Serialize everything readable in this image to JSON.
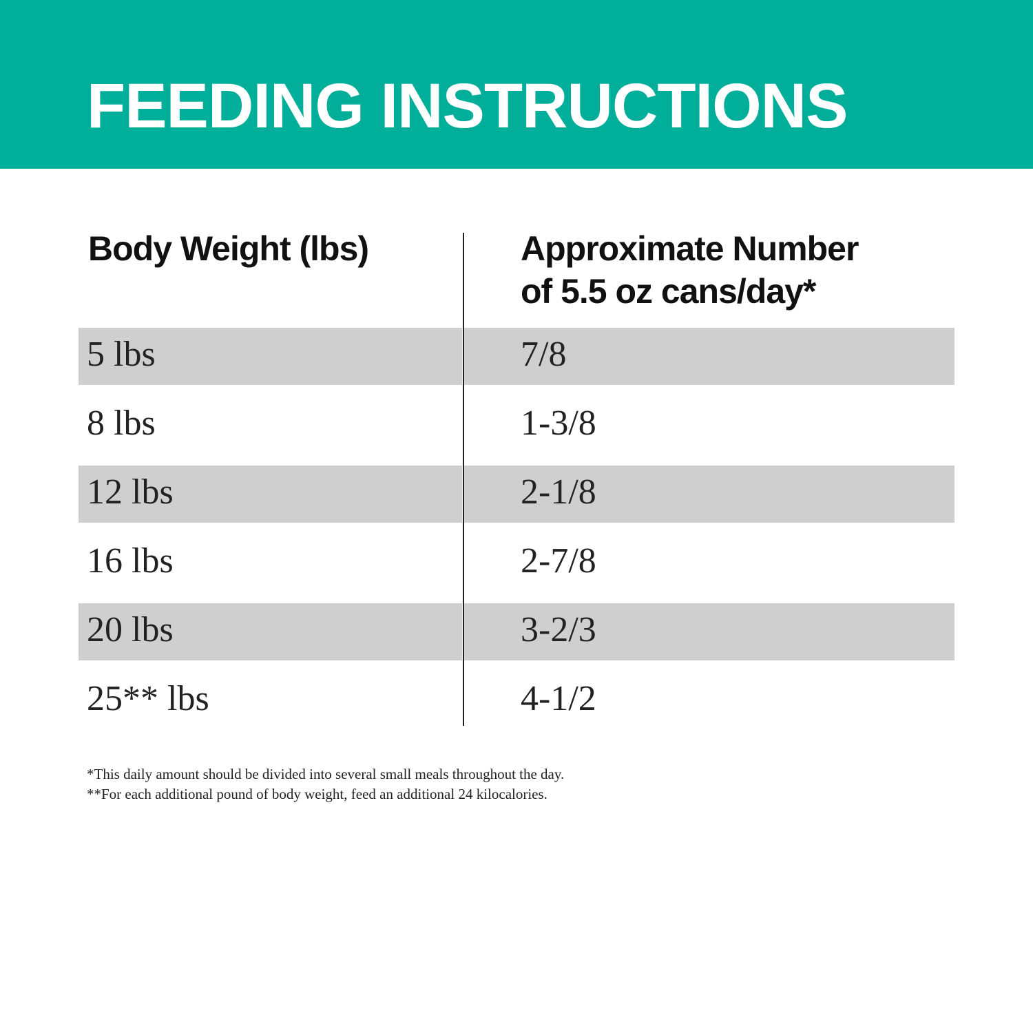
{
  "banner": {
    "title": "FEEDING INSTRUCTIONS",
    "color": "#00ae99"
  },
  "table": {
    "headers": [
      "Body Weight (lbs)",
      "Approximate Number",
      "of 5.5 oz cans/day*"
    ],
    "rows": [
      {
        "weight": "5 lbs",
        "cans": "7/8"
      },
      {
        "weight": "8 lbs",
        "cans": "1-3/8"
      },
      {
        "weight": "12 lbs",
        "cans": "2-1/8"
      },
      {
        "weight": "16 lbs",
        "cans": "2-7/8"
      },
      {
        "weight": "20 lbs",
        "cans": "3-2/3"
      },
      {
        "weight": "25** lbs",
        "cans": "4-1/2"
      }
    ],
    "stripe_color": "#cfcfcf"
  },
  "footnotes": [
    "*This daily amount should be divided into several small meals throughout the day.",
    "**For each additional pound of body weight, feed an additional 24 kilocalories."
  ]
}
